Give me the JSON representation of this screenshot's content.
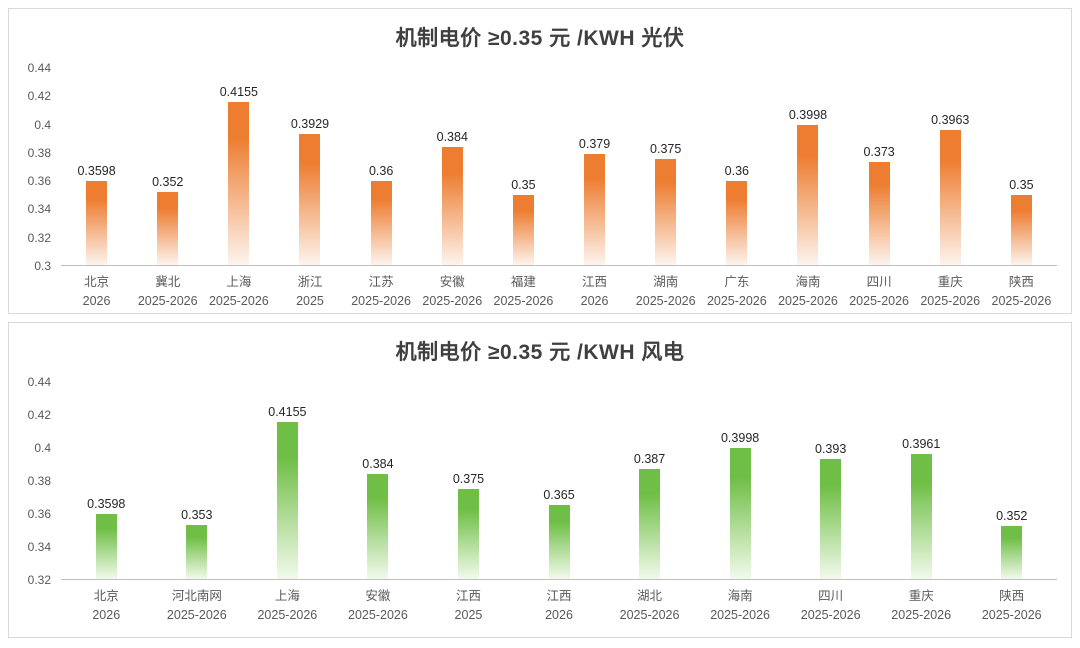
{
  "page": {
    "background": "#ffffff",
    "panel_border": "#d9d9d9"
  },
  "chart_data": [
    {
      "type": "bar",
      "title": "机制电价 ≥0.35 元 /KWH 光伏",
      "legend_position": "none",
      "grid": false,
      "bar_color": "#ED7D31",
      "bar_fade_color": "#FDF4EE",
      "ylim": [
        0.3,
        0.44
      ],
      "yticks": [
        "0.3",
        "0.32",
        "0.34",
        "0.36",
        "0.38",
        "0.4",
        "0.42",
        "0.44"
      ],
      "categories": [
        {
          "name": "北京",
          "period": "2026"
        },
        {
          "name": "冀北",
          "period": "2025-2026"
        },
        {
          "name": "上海",
          "period": "2025-2026"
        },
        {
          "name": "浙江",
          "period": "2025"
        },
        {
          "name": "江苏",
          "period": "2025-2026"
        },
        {
          "name": "安徽",
          "period": "2025-2026"
        },
        {
          "name": "福建",
          "period": "2025-2026"
        },
        {
          "name": "江西",
          "period": "2026"
        },
        {
          "name": "湖南",
          "period": "2025-2026"
        },
        {
          "name": "广东",
          "period": "2025-2026"
        },
        {
          "name": "海南",
          "period": "2025-2026"
        },
        {
          "name": "四川",
          "period": "2025-2026"
        },
        {
          "name": "重庆",
          "period": "2025-2026"
        },
        {
          "name": "陕西",
          "period": "2025-2026"
        }
      ],
      "values": [
        0.3598,
        0.352,
        0.4155,
        0.3929,
        0.36,
        0.384,
        0.35,
        0.379,
        0.375,
        0.36,
        0.3998,
        0.373,
        0.3963,
        0.35
      ],
      "labels": [
        "0.3598",
        "0.352",
        "0.4155",
        "0.3929",
        "0.36",
        "0.384",
        "0.35",
        "0.379",
        "0.375",
        "0.36",
        "0.3998",
        "0.373",
        "0.3963",
        "0.35"
      ]
    },
    {
      "type": "bar",
      "title": "机制电价 ≥0.35 元 /KWH 风电",
      "legend_position": "none",
      "grid": false,
      "bar_color": "#6FBE45",
      "bar_fade_color": "#F2FAEC",
      "ylim": [
        0.32,
        0.44
      ],
      "yticks": [
        "0.32",
        "0.34",
        "0.36",
        "0.38",
        "0.4",
        "0.42",
        "0.44"
      ],
      "categories": [
        {
          "name": "北京",
          "period": "2026"
        },
        {
          "name": "河北南网",
          "period": "2025-2026"
        },
        {
          "name": "上海",
          "period": "2025-2026"
        },
        {
          "name": "安徽",
          "period": "2025-2026"
        },
        {
          "name": "江西",
          "period": "2025"
        },
        {
          "name": "江西",
          "period": "2026"
        },
        {
          "name": "湖北",
          "period": "2025-2026"
        },
        {
          "name": "海南",
          "period": "2025-2026"
        },
        {
          "name": "四川",
          "period": "2025-2026"
        },
        {
          "name": "重庆",
          "period": "2025-2026"
        },
        {
          "name": "陕西",
          "period": "2025-2026"
        }
      ],
      "values": [
        0.3598,
        0.353,
        0.4155,
        0.384,
        0.375,
        0.365,
        0.387,
        0.3998,
        0.393,
        0.3961,
        0.352
      ],
      "labels": [
        "0.3598",
        "0.353",
        "0.4155",
        "0.384",
        "0.375",
        "0.365",
        "0.387",
        "0.3998",
        "0.393",
        "0.3961",
        "0.352"
      ]
    }
  ]
}
